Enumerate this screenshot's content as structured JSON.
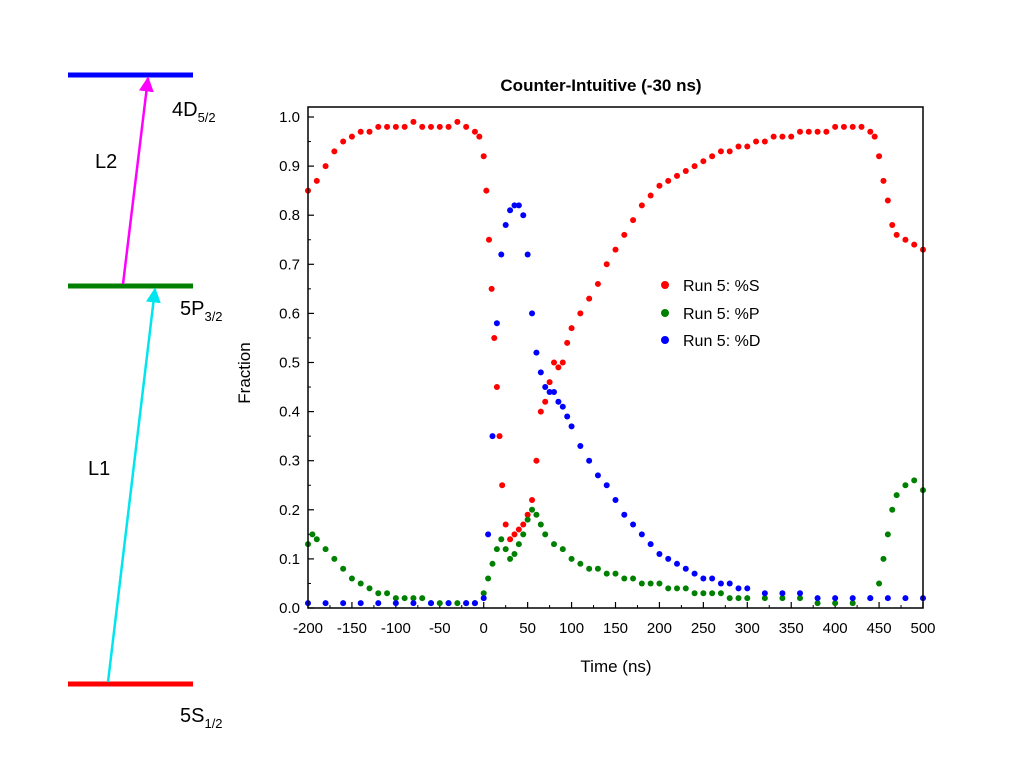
{
  "energy_diagram": {
    "levels": [
      {
        "label": "4D",
        "sub": "5/2",
        "color": "#0000ff"
      },
      {
        "label": "5P",
        "sub": "3/2",
        "color": "#008000"
      },
      {
        "label": "5S",
        "sub": "1/2",
        "color": "#ff0000"
      }
    ],
    "transitions": [
      {
        "label": "L1",
        "color": "#00e5ee"
      },
      {
        "label": "L2",
        "color": "#ff00ff"
      }
    ]
  },
  "chart_data": {
    "type": "scatter",
    "title": "Counter-Intuitive (-30 ns)",
    "xlabel": "Time (ns)",
    "ylabel": "Fraction",
    "xlim": [
      -200,
      500
    ],
    "ylim": [
      0,
      1.0
    ],
    "xticks": [
      "-200",
      "-150",
      "-100",
      "-50",
      "0",
      "50",
      "100",
      "150",
      "200",
      "250",
      "300",
      "350",
      "400",
      "450",
      "500"
    ],
    "yticks": [
      "0.0",
      "0.1",
      "0.2",
      "0.3",
      "0.4",
      "0.5",
      "0.6",
      "0.7",
      "0.8",
      "0.9",
      "1.0"
    ],
    "legend_position": "center-right",
    "series": [
      {
        "name": "Run 5: %S",
        "color": "#ff0000",
        "x": [
          -200,
          -190,
          -180,
          -170,
          -160,
          -150,
          -140,
          -130,
          -120,
          -110,
          -100,
          -90,
          -80,
          -70,
          -60,
          -50,
          -40,
          -30,
          -20,
          -10,
          -5,
          0,
          3,
          6,
          9,
          12,
          15,
          18,
          21,
          25,
          30,
          35,
          40,
          45,
          50,
          55,
          60,
          65,
          70,
          75,
          80,
          85,
          90,
          95,
          100,
          110,
          120,
          130,
          140,
          150,
          160,
          170,
          180,
          190,
          200,
          210,
          220,
          230,
          240,
          250,
          260,
          270,
          280,
          290,
          300,
          310,
          320,
          330,
          340,
          350,
          360,
          370,
          380,
          390,
          400,
          410,
          420,
          430,
          440,
          445,
          450,
          455,
          460,
          465,
          470,
          480,
          490,
          500
        ],
        "y": [
          0.85,
          0.87,
          0.9,
          0.93,
          0.95,
          0.96,
          0.97,
          0.97,
          0.98,
          0.98,
          0.98,
          0.98,
          0.99,
          0.98,
          0.98,
          0.98,
          0.98,
          0.99,
          0.98,
          0.97,
          0.96,
          0.92,
          0.85,
          0.75,
          0.65,
          0.55,
          0.45,
          0.35,
          0.25,
          0.17,
          0.14,
          0.15,
          0.16,
          0.17,
          0.19,
          0.22,
          0.3,
          0.4,
          0.42,
          0.46,
          0.5,
          0.49,
          0.5,
          0.54,
          0.57,
          0.6,
          0.63,
          0.66,
          0.7,
          0.73,
          0.76,
          0.79,
          0.82,
          0.84,
          0.86,
          0.87,
          0.88,
          0.89,
          0.9,
          0.91,
          0.92,
          0.93,
          0.93,
          0.94,
          0.94,
          0.95,
          0.95,
          0.96,
          0.96,
          0.96,
          0.97,
          0.97,
          0.97,
          0.97,
          0.98,
          0.98,
          0.98,
          0.98,
          0.97,
          0.96,
          0.92,
          0.87,
          0.83,
          0.78,
          0.76,
          0.75,
          0.74,
          0.73
        ]
      },
      {
        "name": "Run 5: %P",
        "color": "#008000",
        "x": [
          -200,
          -195,
          -190,
          -180,
          -170,
          -160,
          -150,
          -140,
          -130,
          -120,
          -110,
          -100,
          -90,
          -80,
          -70,
          -60,
          -50,
          -40,
          -30,
          -20,
          -10,
          0,
          5,
          10,
          15,
          20,
          25,
          30,
          35,
          40,
          45,
          50,
          55,
          60,
          65,
          70,
          80,
          90,
          100,
          110,
          120,
          130,
          140,
          150,
          160,
          170,
          180,
          190,
          200,
          210,
          220,
          230,
          240,
          250,
          260,
          270,
          280,
          290,
          300,
          320,
          340,
          360,
          380,
          400,
          420,
          440,
          450,
          455,
          460,
          465,
          470,
          480,
          490,
          500
        ],
        "y": [
          0.13,
          0.15,
          0.14,
          0.12,
          0.1,
          0.08,
          0.06,
          0.05,
          0.04,
          0.03,
          0.03,
          0.02,
          0.02,
          0.02,
          0.02,
          0.01,
          0.01,
          0.01,
          0.01,
          0.01,
          0.01,
          0.03,
          0.06,
          0.09,
          0.12,
          0.14,
          0.12,
          0.1,
          0.11,
          0.13,
          0.15,
          0.18,
          0.2,
          0.19,
          0.17,
          0.15,
          0.13,
          0.12,
          0.1,
          0.09,
          0.08,
          0.08,
          0.07,
          0.07,
          0.06,
          0.06,
          0.05,
          0.05,
          0.05,
          0.04,
          0.04,
          0.04,
          0.03,
          0.03,
          0.03,
          0.03,
          0.02,
          0.02,
          0.02,
          0.02,
          0.02,
          0.02,
          0.01,
          0.01,
          0.01,
          0.02,
          0.05,
          0.1,
          0.15,
          0.2,
          0.23,
          0.25,
          0.26,
          0.24
        ]
      },
      {
        "name": "Run 5: %D",
        "color": "#0000ff",
        "x": [
          -200,
          -180,
          -160,
          -140,
          -120,
          -100,
          -80,
          -60,
          -40,
          -20,
          -10,
          0,
          5,
          10,
          15,
          20,
          25,
          30,
          35,
          40,
          45,
          50,
          55,
          60,
          65,
          70,
          75,
          80,
          85,
          90,
          95,
          100,
          110,
          120,
          130,
          140,
          150,
          160,
          170,
          180,
          190,
          200,
          210,
          220,
          230,
          240,
          250,
          260,
          270,
          280,
          290,
          300,
          320,
          340,
          360,
          380,
          400,
          420,
          440,
          460,
          480,
          500
        ],
        "y": [
          0.01,
          0.01,
          0.01,
          0.01,
          0.01,
          0.01,
          0.01,
          0.01,
          0.01,
          0.01,
          0.01,
          0.02,
          0.15,
          0.35,
          0.58,
          0.72,
          0.78,
          0.81,
          0.82,
          0.82,
          0.8,
          0.72,
          0.6,
          0.52,
          0.48,
          0.45,
          0.44,
          0.44,
          0.42,
          0.41,
          0.39,
          0.37,
          0.33,
          0.3,
          0.27,
          0.25,
          0.22,
          0.19,
          0.17,
          0.15,
          0.13,
          0.11,
          0.1,
          0.09,
          0.08,
          0.07,
          0.06,
          0.06,
          0.05,
          0.05,
          0.04,
          0.04,
          0.03,
          0.03,
          0.03,
          0.02,
          0.02,
          0.02,
          0.02,
          0.02,
          0.02,
          0.02
        ]
      }
    ]
  }
}
